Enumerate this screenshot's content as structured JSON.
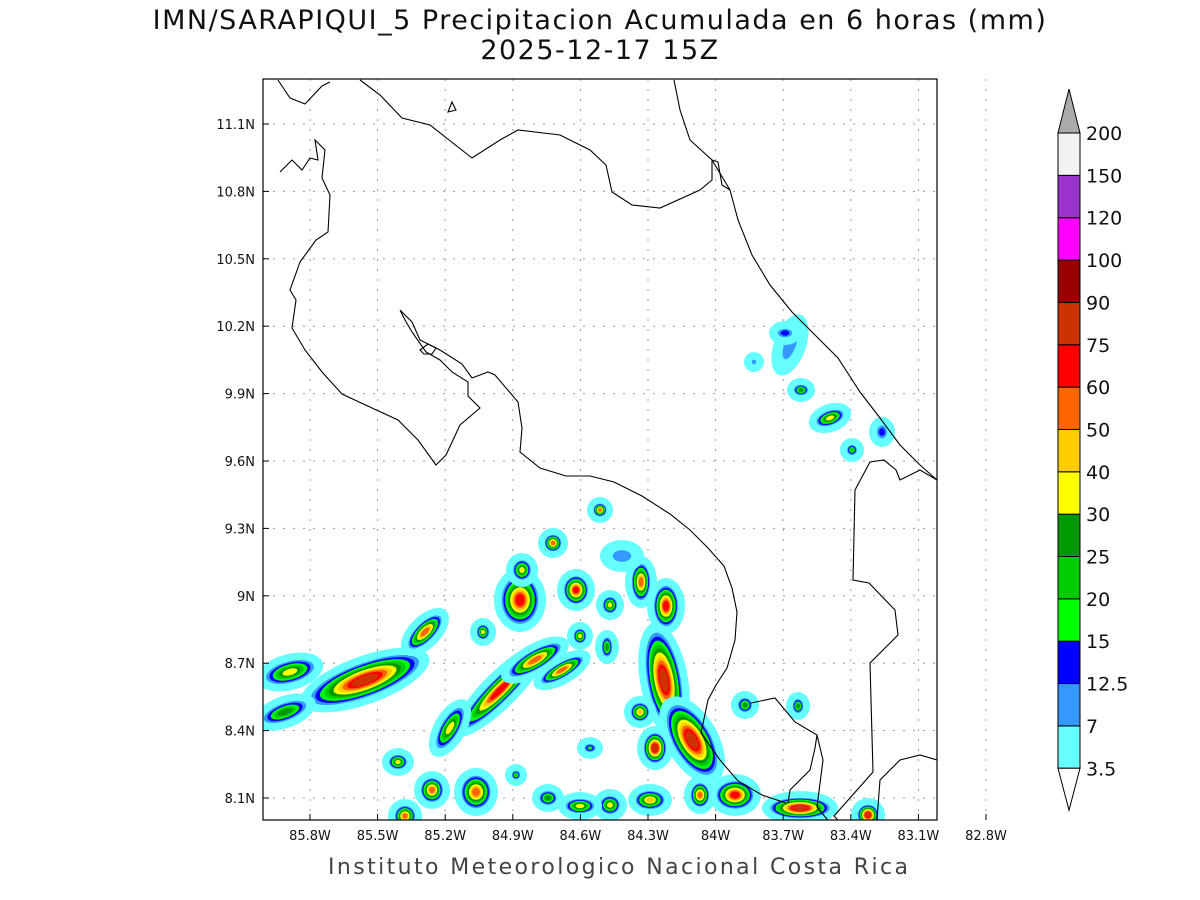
{
  "header": {
    "title": "IMN/SARAPIQUI_5 Precipitacion Acumulada en 6 horas (mm)",
    "subtitle": "2025-12-17 15Z"
  },
  "footer": "Instituto Meteorologico Nacional Costa Rica",
  "axes": {
    "lat_labels": [
      "11.1N",
      "10.8N",
      "10.5N",
      "10.2N",
      "9.9N",
      "9.6N",
      "9.3N",
      "9N",
      "8.7N",
      "8.4N",
      "8.1N"
    ],
    "lon_labels": [
      "85.8W",
      "85.5W",
      "85.2W",
      "84.9W",
      "84.6W",
      "84.3W",
      "84W",
      "83.7W",
      "83.4W",
      "83.1W",
      "82.8W"
    ]
  },
  "colorbar": {
    "labels": [
      "3.5",
      "7",
      "12.5",
      "15",
      "20",
      "25",
      "30",
      "40",
      "50",
      "60",
      "75",
      "90",
      "100",
      "120",
      "150",
      "200"
    ],
    "colors": [
      "#66ffff",
      "#3399ff",
      "#0000ff",
      "#00ff00",
      "#00cc00",
      "#009900",
      "#ffff00",
      "#ffcc00",
      "#ff6600",
      "#ff0000",
      "#cc3300",
      "#990000",
      "#ff00ff",
      "#9933cc",
      "#f2f2f2"
    ],
    "over_color": "#aaaaaa",
    "under_color": "#ffffff"
  }
}
